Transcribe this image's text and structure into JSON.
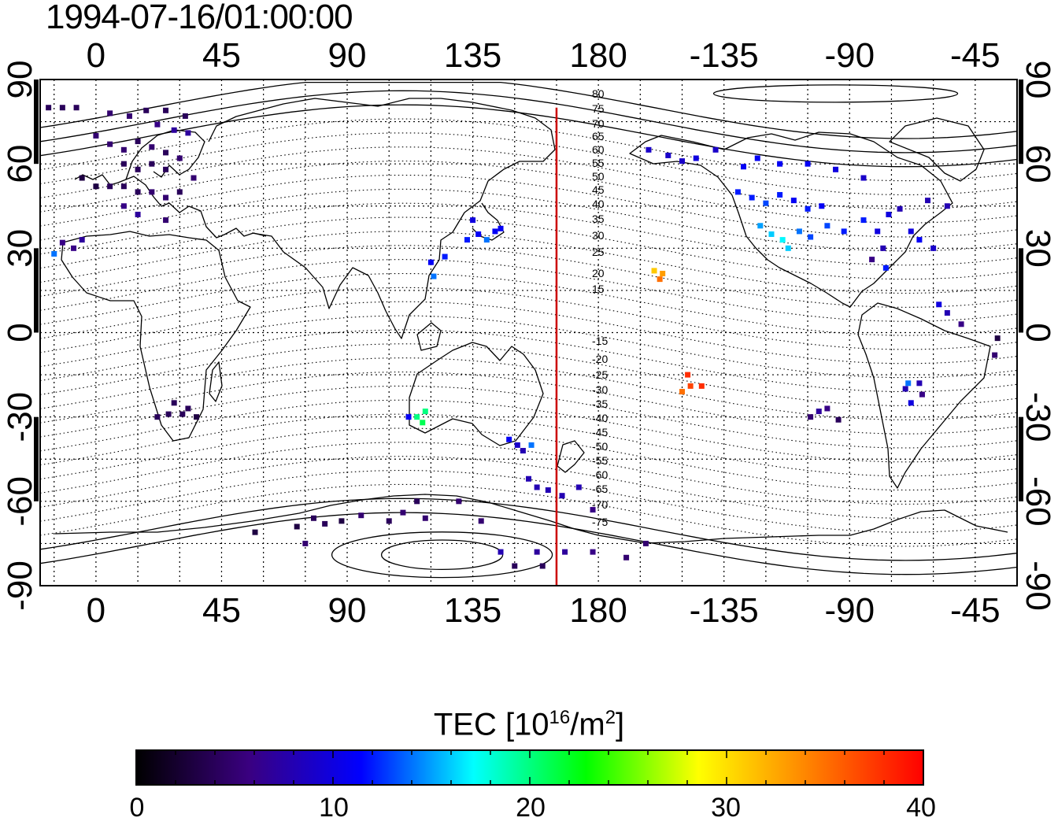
{
  "timestamp": "1994-07-16/01:00:00",
  "colorbar": {
    "title_prefix": "TEC  [10",
    "title_exp1": "16",
    "title_mid": "/m",
    "title_exp2": "2",
    "title_suffix": "]",
    "min": 0,
    "max": 40,
    "ticks": [
      "0",
      "10",
      "20",
      "30",
      "40"
    ],
    "colormap": [
      "#000000",
      "#3a0080",
      "#0000ff",
      "#00ffff",
      "#00ff00",
      "#ffff00",
      "#ff8000",
      "#ff0000"
    ]
  },
  "map": {
    "lon_ticks": [
      "0",
      "45",
      "90",
      "135",
      "180",
      "-135",
      "-90",
      "-45"
    ],
    "lat_ticks": [
      "90",
      "60",
      "30",
      "0",
      "-30",
      "-60",
      "-90"
    ],
    "lon_range": [
      -20,
      330
    ],
    "lat_range": [
      -90,
      90
    ],
    "meridian_lon": 165,
    "meridian_color": "#cc0000",
    "contour_labels": [
      "80",
      "75",
      "70",
      "65",
      "60",
      "55",
      "50",
      "45",
      "40",
      "35",
      "30",
      "25",
      "20",
      "15",
      "-15",
      "-20",
      "-25",
      "-30",
      "-35",
      "-40",
      "-45",
      "-50",
      "-55",
      "-60",
      "-65",
      "-70",
      "-75"
    ]
  },
  "chart_data": {
    "type": "scatter",
    "title": "1994-07-16/01:00:00",
    "xlabel": "",
    "ylabel": "",
    "xlim": [
      -20,
      330
    ],
    "ylim": [
      -90,
      90
    ],
    "color_label": "TEC  [10^16/m^2]",
    "color_range": [
      0,
      40
    ],
    "points": [
      {
        "lon": -17,
        "lat": 80,
        "tec": 4
      },
      {
        "lon": -12,
        "lat": 80,
        "tec": 4
      },
      {
        "lon": -7,
        "lat": 80,
        "tec": 4
      },
      {
        "lon": 5,
        "lat": 78,
        "tec": 5
      },
      {
        "lon": 12,
        "lat": 77,
        "tec": 5
      },
      {
        "lon": 18,
        "lat": 79,
        "tec": 4
      },
      {
        "lon": 25,
        "lat": 79,
        "tec": 4
      },
      {
        "lon": 32,
        "lat": 77,
        "tec": 4
      },
      {
        "lon": 22,
        "lat": 74,
        "tec": 6
      },
      {
        "lon": 28,
        "lat": 72,
        "tec": 7
      },
      {
        "lon": 33,
        "lat": 71,
        "tec": 7
      },
      {
        "lon": 0,
        "lat": 70,
        "tec": 5
      },
      {
        "lon": 5,
        "lat": 67,
        "tec": 5
      },
      {
        "lon": 10,
        "lat": 65,
        "tec": 5
      },
      {
        "lon": 15,
        "lat": 68,
        "tec": 4
      },
      {
        "lon": 20,
        "lat": 66,
        "tec": 5
      },
      {
        "lon": 25,
        "lat": 64,
        "tec": 4
      },
      {
        "lon": 30,
        "lat": 62,
        "tec": 5
      },
      {
        "lon": 10,
        "lat": 60,
        "tec": 4
      },
      {
        "lon": 15,
        "lat": 58,
        "tec": 4
      },
      {
        "lon": 20,
        "lat": 60,
        "tec": 4
      },
      {
        "lon": 25,
        "lat": 58,
        "tec": 4
      },
      {
        "lon": -5,
        "lat": 55,
        "tec": 3
      },
      {
        "lon": 0,
        "lat": 52,
        "tec": 3
      },
      {
        "lon": 5,
        "lat": 52,
        "tec": 4
      },
      {
        "lon": 10,
        "lat": 52,
        "tec": 4
      },
      {
        "lon": 15,
        "lat": 50,
        "tec": 4
      },
      {
        "lon": 20,
        "lat": 50,
        "tec": 5
      },
      {
        "lon": 25,
        "lat": 48,
        "tec": 5
      },
      {
        "lon": 30,
        "lat": 50,
        "tec": 4
      },
      {
        "lon": 35,
        "lat": 55,
        "tec": 5
      },
      {
        "lon": 10,
        "lat": 45,
        "tec": 6
      },
      {
        "lon": 15,
        "lat": 42,
        "tec": 7
      },
      {
        "lon": 25,
        "lat": 40,
        "tec": 5
      },
      {
        "lon": -15,
        "lat": 28,
        "tec": 14
      },
      {
        "lon": -12,
        "lat": 32,
        "tec": 6
      },
      {
        "lon": -8,
        "lat": 30,
        "tec": 6
      },
      {
        "lon": -5,
        "lat": 33,
        "tec": 7
      },
      {
        "lon": 22,
        "lat": -30,
        "tec": 4
      },
      {
        "lon": 26,
        "lat": -29,
        "tec": 4
      },
      {
        "lon": 28,
        "lat": -25,
        "tec": 4
      },
      {
        "lon": 31,
        "lat": -29,
        "tec": 4
      },
      {
        "lon": 33,
        "lat": -27,
        "tec": 4
      },
      {
        "lon": 36,
        "lat": -30,
        "tec": 3
      },
      {
        "lon": 115,
        "lat": -30,
        "tec": 20
      },
      {
        "lon": 117,
        "lat": -32,
        "tec": 21
      },
      {
        "lon": 112,
        "lat": -30,
        "tec": 11
      },
      {
        "lon": 118,
        "lat": -28,
        "tec": 20
      },
      {
        "lon": 120,
        "lat": 25,
        "tec": 11
      },
      {
        "lon": 121,
        "lat": 20,
        "tec": 14
      },
      {
        "lon": 125,
        "lat": 27,
        "tec": 12
      },
      {
        "lon": 133,
        "lat": 33,
        "tec": 12
      },
      {
        "lon": 137,
        "lat": 35,
        "tec": 11
      },
      {
        "lon": 140,
        "lat": 33,
        "tec": 14
      },
      {
        "lon": 143,
        "lat": 36,
        "tec": 11
      },
      {
        "lon": 145,
        "lat": 37,
        "tec": 11
      },
      {
        "lon": 135,
        "lat": 40,
        "tec": 10
      },
      {
        "lon": 148,
        "lat": -38,
        "tec": 11
      },
      {
        "lon": 151,
        "lat": -40,
        "tec": 9
      },
      {
        "lon": 153,
        "lat": -42,
        "tec": 8
      },
      {
        "lon": 156,
        "lat": -40,
        "tec": 14
      },
      {
        "lon": 155,
        "lat": -52,
        "tec": 8
      },
      {
        "lon": 158,
        "lat": -55,
        "tec": 8
      },
      {
        "lon": 162,
        "lat": -56,
        "tec": 8
      },
      {
        "lon": 167,
        "lat": -58,
        "tec": 8
      },
      {
        "lon": 173,
        "lat": -55,
        "tec": 8
      },
      {
        "lon": 178,
        "lat": -63,
        "tec": 6
      },
      {
        "lon": 200,
        "lat": 22,
        "tec": 31
      },
      {
        "lon": 203,
        "lat": 21,
        "tec": 33
      },
      {
        "lon": 202,
        "lat": 19,
        "tec": 35
      },
      {
        "lon": 212,
        "lat": -15,
        "tec": 38
      },
      {
        "lon": 213,
        "lat": -19,
        "tec": 37
      },
      {
        "lon": 217,
        "lat": -19,
        "tec": 38
      },
      {
        "lon": 210,
        "lat": -21,
        "tec": 35
      },
      {
        "lon": 198,
        "lat": 65,
        "tec": 9
      },
      {
        "lon": 205,
        "lat": 63,
        "tec": 9
      },
      {
        "lon": 210,
        "lat": 61,
        "tec": 9
      },
      {
        "lon": 215,
        "lat": 62,
        "tec": 10
      },
      {
        "lon": 222,
        "lat": 65,
        "tec": 9
      },
      {
        "lon": 232,
        "lat": 59,
        "tec": 11
      },
      {
        "lon": 237,
        "lat": 62,
        "tec": 11
      },
      {
        "lon": 245,
        "lat": 60,
        "tec": 11
      },
      {
        "lon": 255,
        "lat": 60,
        "tec": 11
      },
      {
        "lon": 265,
        "lat": 58,
        "tec": 10
      },
      {
        "lon": 275,
        "lat": 55,
        "tec": 9
      },
      {
        "lon": 230,
        "lat": 50,
        "tec": 12
      },
      {
        "lon": 235,
        "lat": 48,
        "tec": 12
      },
      {
        "lon": 240,
        "lat": 46,
        "tec": 13
      },
      {
        "lon": 245,
        "lat": 49,
        "tec": 12
      },
      {
        "lon": 250,
        "lat": 47,
        "tec": 11
      },
      {
        "lon": 255,
        "lat": 44,
        "tec": 12
      },
      {
        "lon": 260,
        "lat": 45,
        "tec": 11
      },
      {
        "lon": 238,
        "lat": 38,
        "tec": 15
      },
      {
        "lon": 242,
        "lat": 35,
        "tec": 16
      },
      {
        "lon": 246,
        "lat": 33,
        "tec": 17
      },
      {
        "lon": 248,
        "lat": 30,
        "tec": 16
      },
      {
        "lon": 252,
        "lat": 36,
        "tec": 14
      },
      {
        "lon": 256,
        "lat": 34,
        "tec": 13
      },
      {
        "lon": 262,
        "lat": 38,
        "tec": 13
      },
      {
        "lon": 268,
        "lat": 36,
        "tec": 12
      },
      {
        "lon": 275,
        "lat": 40,
        "tec": 12
      },
      {
        "lon": 280,
        "lat": 36,
        "tec": 10
      },
      {
        "lon": 284,
        "lat": 42,
        "tec": 10
      },
      {
        "lon": 288,
        "lat": 44,
        "tec": 8
      },
      {
        "lon": 292,
        "lat": 36,
        "tec": 10
      },
      {
        "lon": 282,
        "lat": 30,
        "tec": 8
      },
      {
        "lon": 278,
        "lat": 26,
        "tec": 6
      },
      {
        "lon": 283,
        "lat": 23,
        "tec": 12
      },
      {
        "lon": 298,
        "lat": 47,
        "tec": 8
      },
      {
        "lon": 305,
        "lat": 45,
        "tec": 8
      },
      {
        "lon": 295,
        "lat": 33,
        "tec": 11
      },
      {
        "lon": 300,
        "lat": 30,
        "tec": 9
      },
      {
        "lon": 302,
        "lat": 10,
        "tec": 10
      },
      {
        "lon": 305,
        "lat": 7,
        "tec": 8
      },
      {
        "lon": 310,
        "lat": 3,
        "tec": 6
      },
      {
        "lon": 322,
        "lat": -8,
        "tec": 5
      },
      {
        "lon": 323,
        "lat": -2,
        "tec": 3
      },
      {
        "lon": 290,
        "lat": -20,
        "tec": 8
      },
      {
        "lon": 292,
        "lat": -25,
        "tec": 10
      },
      {
        "lon": 291,
        "lat": -18,
        "tec": 14
      },
      {
        "lon": 295,
        "lat": -18,
        "tec": 8
      },
      {
        "lon": 296,
        "lat": -22,
        "tec": 6
      },
      {
        "lon": 259,
        "lat": -28,
        "tec": 7
      },
      {
        "lon": 262,
        "lat": -27,
        "tec": 6
      },
      {
        "lon": 256,
        "lat": -30,
        "tec": 5
      },
      {
        "lon": 266,
        "lat": -31,
        "tec": 4
      },
      {
        "lon": 57,
        "lat": -71,
        "tec": 3
      },
      {
        "lon": 72,
        "lat": -69,
        "tec": 3
      },
      {
        "lon": 78,
        "lat": -66,
        "tec": 4
      },
      {
        "lon": 82,
        "lat": -68,
        "tec": 4
      },
      {
        "lon": 88,
        "lat": -67,
        "tec": 3
      },
      {
        "lon": 95,
        "lat": -65,
        "tec": 5
      },
      {
        "lon": 105,
        "lat": -67,
        "tec": 4
      },
      {
        "lon": 110,
        "lat": -64,
        "tec": 5
      },
      {
        "lon": 118,
        "lat": -66,
        "tec": 5
      },
      {
        "lon": 115,
        "lat": -60,
        "tec": 4
      },
      {
        "lon": 130,
        "lat": -60,
        "tec": 5
      },
      {
        "lon": 138,
        "lat": -67,
        "tec": 5
      },
      {
        "lon": 75,
        "lat": -75,
        "tec": 5
      },
      {
        "lon": 145,
        "lat": -78,
        "tec": 8
      },
      {
        "lon": 158,
        "lat": -78,
        "tec": 7
      },
      {
        "lon": 168,
        "lat": -78,
        "tec": 7
      },
      {
        "lon": 178,
        "lat": -78,
        "tec": 6
      },
      {
        "lon": 190,
        "lat": -80,
        "tec": 5
      },
      {
        "lon": 197,
        "lat": -75,
        "tec": 5
      },
      {
        "lon": 150,
        "lat": -83,
        "tec": 4
      },
      {
        "lon": 160,
        "lat": -83,
        "tec": 4
      }
    ]
  }
}
